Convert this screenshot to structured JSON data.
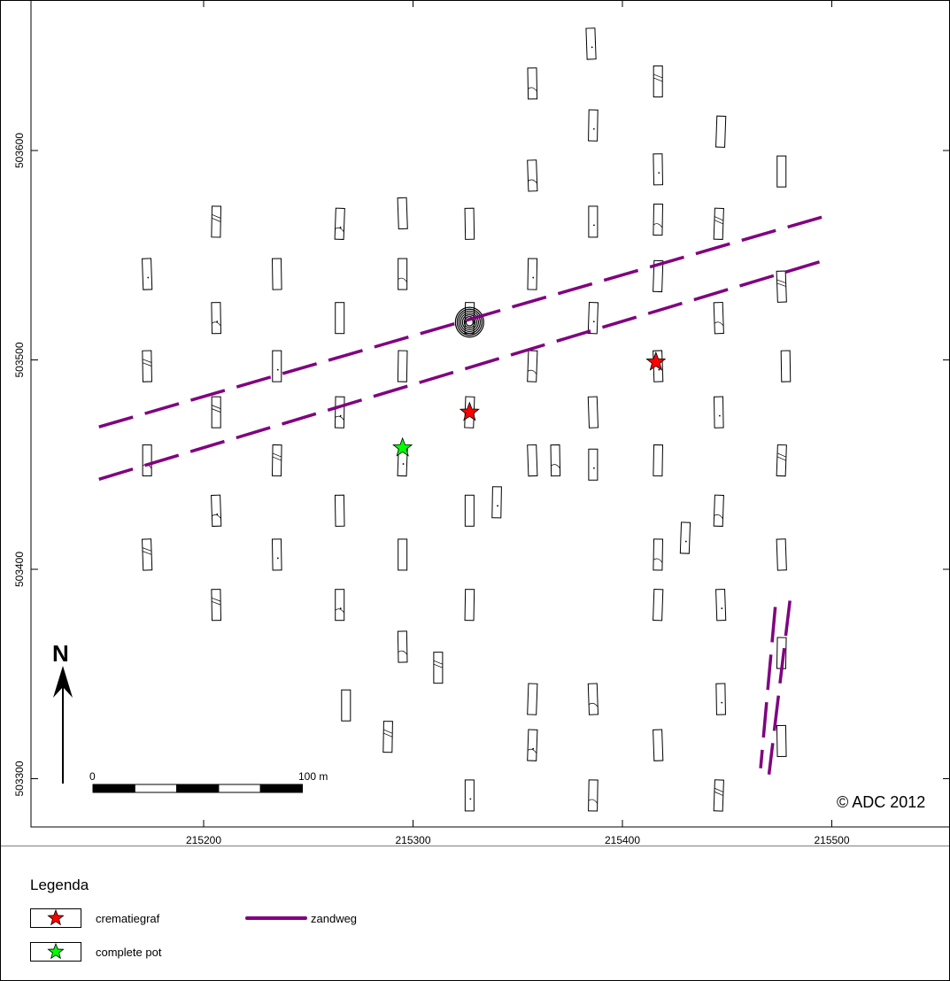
{
  "map": {
    "x_ticks": [
      "215200",
      "215300",
      "215400",
      "215500"
    ],
    "y_ticks": [
      "503600",
      "503500",
      "503400",
      "503300"
    ],
    "x_range": [
      215127,
      215557
    ],
    "y_range": [
      503262,
      503668
    ],
    "north_label": "N",
    "scale_bar": {
      "start_label": "0",
      "end_label": "100 m",
      "length_m": 100,
      "segments": 5
    },
    "copyright": "© ADC 2012"
  },
  "features": {
    "cremation_graves": [
      {
        "x": 215327,
        "y": 503475
      },
      {
        "x": 215416,
        "y": 503499
      }
    ],
    "complete_pot": [
      {
        "x": 215295,
        "y": 503458
      }
    ],
    "sand_roads": [
      {
        "from": [
          215150,
          503468
        ],
        "to": [
          215498,
          503569
        ]
      },
      {
        "from": [
          215150,
          503443
        ],
        "to": [
          215498,
          503548
        ]
      },
      {
        "from": [
          215480,
          503385
        ],
        "to": [
          215470,
          503302
        ]
      },
      {
        "from": [
          215473,
          503382
        ],
        "to": [
          215466,
          503305
        ]
      }
    ],
    "trenches": [
      [
        215385,
        503651
      ],
      [
        215357,
        503632
      ],
      [
        215417,
        503633
      ],
      [
        215386,
        503612
      ],
      [
        215447,
        503609
      ],
      [
        215357,
        503588
      ],
      [
        215417,
        503591
      ],
      [
        215476,
        503590
      ],
      [
        215206,
        503566
      ],
      [
        215265,
        503565
      ],
      [
        215295,
        503570
      ],
      [
        215327,
        503565
      ],
      [
        215386,
        503566
      ],
      [
        215417,
        503567
      ],
      [
        215446,
        503565
      ],
      [
        215173,
        503541
      ],
      [
        215235,
        503541
      ],
      [
        215295,
        503541
      ],
      [
        215357,
        503541
      ],
      [
        215417,
        503540
      ],
      [
        215476,
        503535
      ],
      [
        215206,
        503520
      ],
      [
        215265,
        503520
      ],
      [
        215327,
        503520
      ],
      [
        215386,
        503520
      ],
      [
        215446,
        503520
      ],
      [
        215173,
        503497
      ],
      [
        215235,
        503497
      ],
      [
        215295,
        503497
      ],
      [
        215357,
        503497
      ],
      [
        215417,
        503497
      ],
      [
        215478,
        503497
      ],
      [
        215206,
        503475
      ],
      [
        215265,
        503475
      ],
      [
        215327,
        503475
      ],
      [
        215386,
        503475
      ],
      [
        215446,
        503475
      ],
      [
        215173,
        503452
      ],
      [
        215235,
        503452
      ],
      [
        215295,
        503452
      ],
      [
        215357,
        503452
      ],
      [
        215368,
        503452
      ],
      [
        215386,
        503450
      ],
      [
        215417,
        503452
      ],
      [
        215476,
        503452
      ],
      [
        215206,
        503428
      ],
      [
        215265,
        503428
      ],
      [
        215327,
        503428
      ],
      [
        215340,
        503432
      ],
      [
        215446,
        503428
      ],
      [
        215173,
        503407
      ],
      [
        215235,
        503407
      ],
      [
        215295,
        503407
      ],
      [
        215417,
        503407
      ],
      [
        215430,
        503415
      ],
      [
        215476,
        503407
      ],
      [
        215206,
        503383
      ],
      [
        215265,
        503383
      ],
      [
        215327,
        503383
      ],
      [
        215417,
        503383
      ],
      [
        215447,
        503383
      ],
      [
        215295,
        503363
      ],
      [
        215312,
        503353
      ],
      [
        215476,
        503360
      ],
      [
        215357,
        503338
      ],
      [
        215386,
        503338
      ],
      [
        215447,
        503338
      ],
      [
        215268,
        503335
      ],
      [
        215288,
        503320
      ],
      [
        215357,
        503316
      ],
      [
        215417,
        503316
      ],
      [
        215476,
        503318
      ],
      [
        215327,
        503292
      ],
      [
        215386,
        503292
      ],
      [
        215446,
        503292
      ]
    ]
  },
  "legend": {
    "title": "Legenda",
    "items": [
      {
        "label": "crematiegraf",
        "color": "#ff0000"
      },
      {
        "label": "complete pot",
        "color": "#00ff00"
      },
      {
        "label": "zandweg",
        "color": "#800080"
      }
    ]
  }
}
